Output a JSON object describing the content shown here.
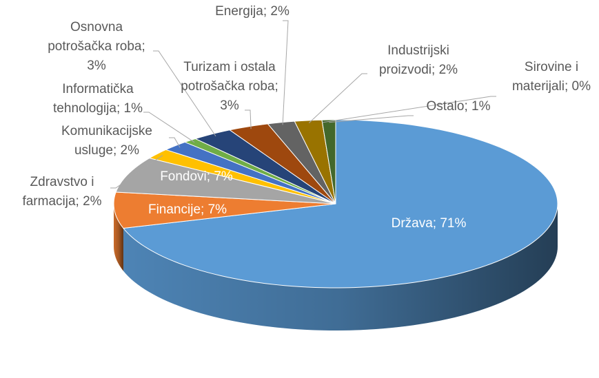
{
  "chart_data": {
    "type": "pie",
    "categories": [
      "Država",
      "Financije",
      "Fondovi",
      "Zdravstvo i farmacija",
      "Komunikacijske usluge",
      "Informatička tehnologija",
      "Osnovna potrošačka roba",
      "Turizam i ostala potrošačka roba",
      "Energija",
      "Industrijski proizvodi",
      "Sirovine i materijali",
      "Ostalo"
    ],
    "values": [
      71,
      7,
      7,
      2,
      2,
      1,
      3,
      3,
      2,
      2,
      0,
      1
    ],
    "value_labels": [
      "Država; 71%",
      "Financije; 7%",
      "Fondovi; 7%",
      "Zdravstvo i farmacija; 2%",
      "Komunikacijske usluge; 2%",
      "Informatička tehnologija; 1%",
      "Osnovna potrošačka roba; 3%",
      "Turizam i ostala potrošačka roba; 3%",
      "Energija; 2%",
      "Industrijski proizvodi; 2%",
      "Sirovine i materijali; 0%",
      "Ostalo; 1%"
    ],
    "colors": [
      "#5b9bd5",
      "#ed7d31",
      "#a5a5a5",
      "#ffc000",
      "#4472c4",
      "#70ad47",
      "#264478",
      "#9e480e",
      "#636363",
      "#997300",
      "#255e91",
      "#43682b"
    ]
  }
}
